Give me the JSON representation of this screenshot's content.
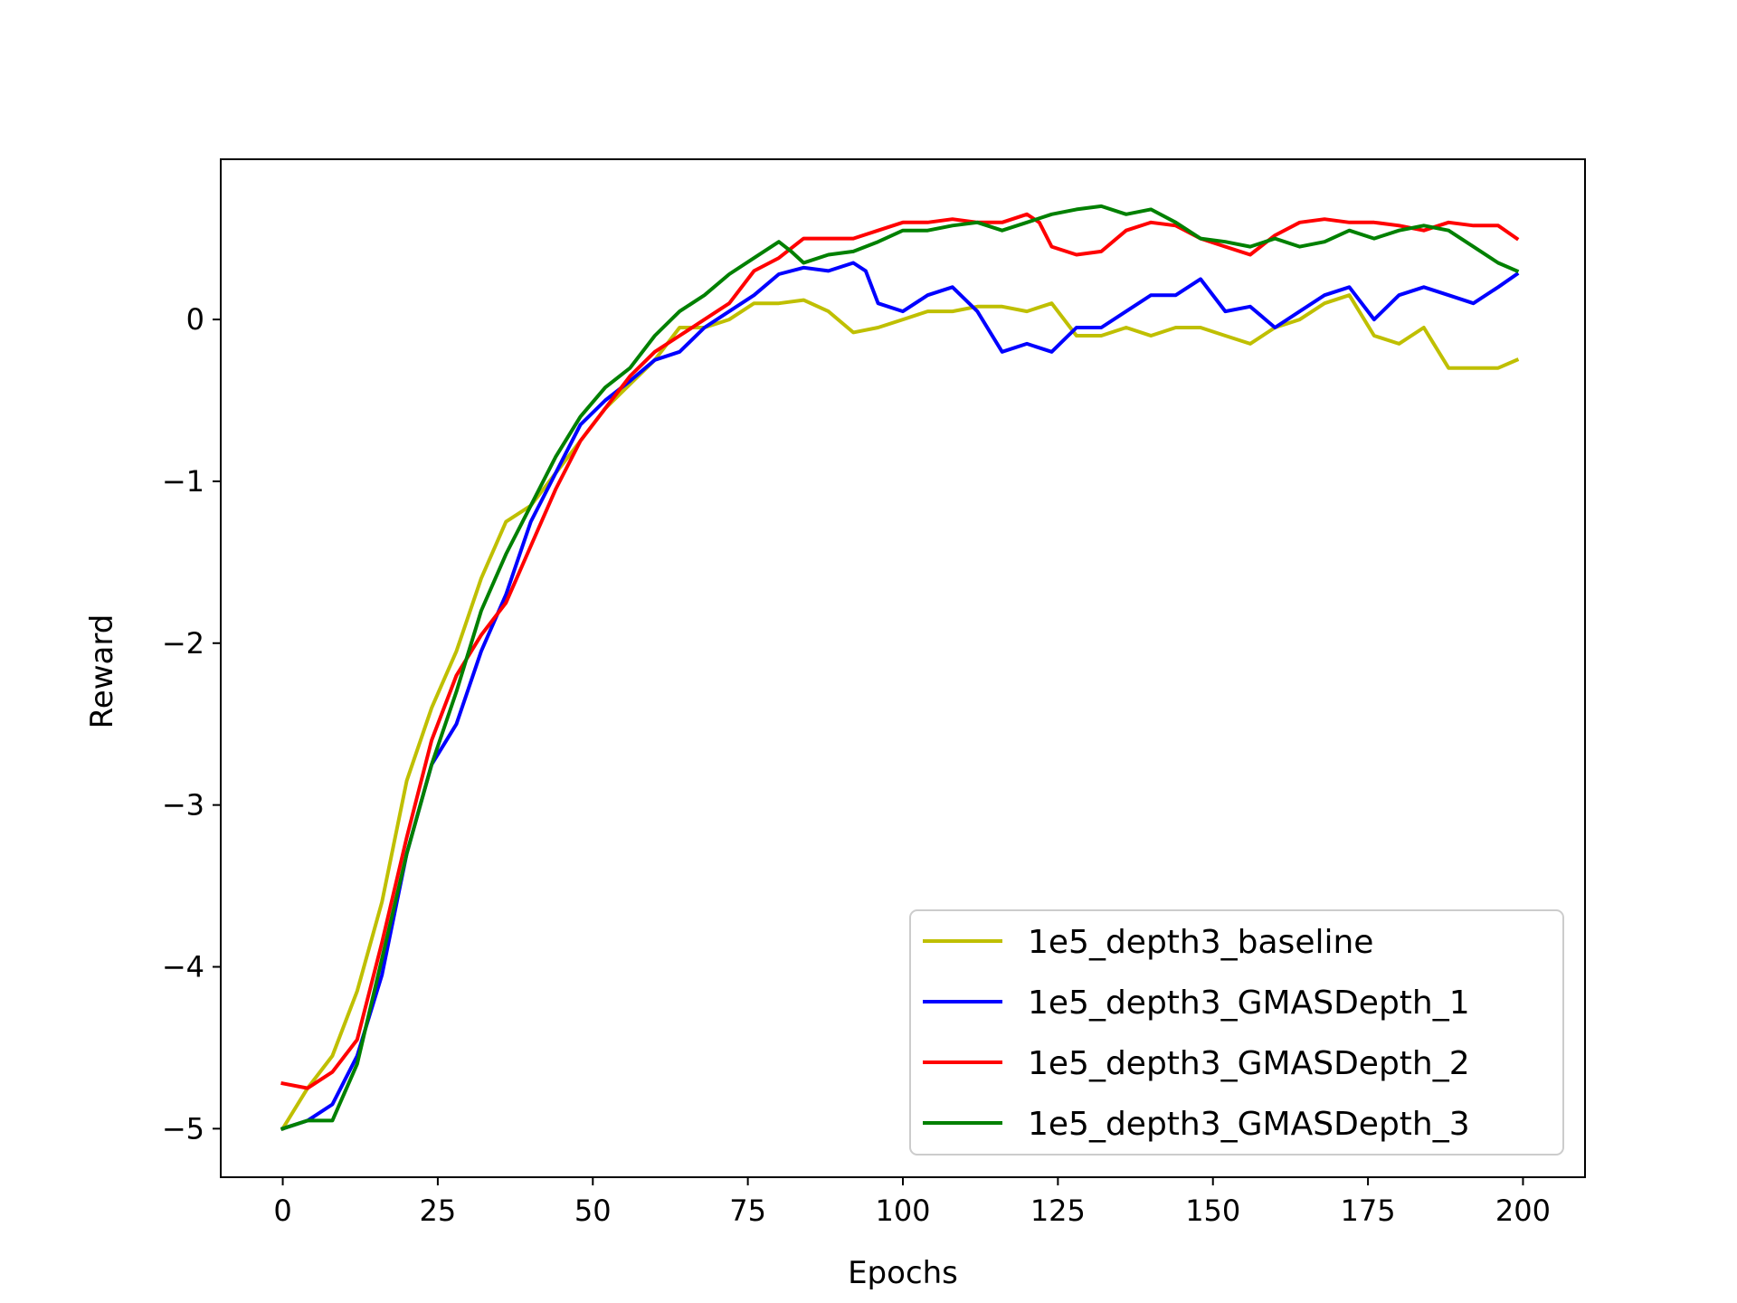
{
  "chart_data": {
    "type": "line",
    "xlabel": "Epochs",
    "ylabel": "Reward",
    "xlim": [
      -10,
      210
    ],
    "ylim": [
      -5.3,
      0.99
    ],
    "xticks": [
      0,
      25,
      50,
      75,
      100,
      125,
      150,
      175,
      200
    ],
    "xtick_labels": [
      "0",
      "25",
      "50",
      "75",
      "100",
      "125",
      "150",
      "175",
      "200"
    ],
    "yticks": [
      -5,
      -4,
      -3,
      -2,
      -1,
      0
    ],
    "ytick_labels": [
      "−5",
      "−4",
      "−3",
      "−2",
      "−1",
      "0"
    ],
    "grid": false,
    "legend_position": "lower-right",
    "series": [
      {
        "name": "1e5_depth3_baseline",
        "color": "#bfbf00",
        "x": [
          0,
          4,
          8,
          12,
          16,
          20,
          24,
          28,
          32,
          36,
          38,
          40,
          44,
          48,
          52,
          56,
          60,
          64,
          68,
          72,
          76,
          80,
          84,
          88,
          92,
          96,
          100,
          104,
          108,
          112,
          116,
          120,
          124,
          128,
          132,
          136,
          140,
          144,
          148,
          152,
          156,
          160,
          164,
          168,
          172,
          176,
          180,
          184,
          188,
          192,
          196,
          199
        ],
        "values": [
          -5.0,
          -4.75,
          -4.55,
          -4.15,
          -3.6,
          -2.85,
          -2.4,
          -2.05,
          -1.6,
          -1.25,
          -1.2,
          -1.15,
          -0.95,
          -0.75,
          -0.55,
          -0.4,
          -0.25,
          -0.05,
          -0.05,
          0.0,
          0.1,
          0.1,
          0.12,
          0.05,
          -0.08,
          -0.05,
          0.0,
          0.05,
          0.05,
          0.08,
          0.08,
          0.05,
          0.1,
          -0.1,
          -0.1,
          -0.05,
          -0.1,
          -0.05,
          -0.05,
          -0.1,
          -0.15,
          -0.05,
          0.0,
          0.1,
          0.15,
          -0.1,
          -0.15,
          -0.05,
          -0.3,
          -0.3,
          -0.3,
          -0.25
        ]
      },
      {
        "name": "1e5_depth3_GMASDepth_1",
        "color": "#0000ff",
        "x": [
          0,
          4,
          8,
          12,
          16,
          20,
          24,
          28,
          32,
          36,
          40,
          44,
          48,
          52,
          56,
          60,
          64,
          68,
          72,
          76,
          80,
          84,
          88,
          92,
          94,
          96,
          100,
          104,
          108,
          112,
          116,
          120,
          124,
          128,
          132,
          136,
          140,
          144,
          148,
          152,
          156,
          160,
          164,
          168,
          172,
          176,
          180,
          184,
          188,
          192,
          196,
          199
        ],
        "values": [
          -5.0,
          -4.95,
          -4.85,
          -4.55,
          -4.05,
          -3.3,
          -2.75,
          -2.5,
          -2.05,
          -1.7,
          -1.25,
          -0.95,
          -0.65,
          -0.5,
          -0.38,
          -0.25,
          -0.2,
          -0.05,
          0.05,
          0.15,
          0.28,
          0.32,
          0.3,
          0.35,
          0.3,
          0.1,
          0.05,
          0.15,
          0.2,
          0.05,
          -0.2,
          -0.15,
          -0.2,
          -0.05,
          -0.05,
          0.05,
          0.15,
          0.15,
          0.25,
          0.05,
          0.08,
          -0.05,
          0.05,
          0.15,
          0.2,
          0.0,
          0.15,
          0.2,
          0.15,
          0.1,
          0.2,
          0.28
        ]
      },
      {
        "name": "1e5_depth3_GMASDepth_2",
        "color": "#ff0000",
        "x": [
          0,
          4,
          8,
          12,
          16,
          20,
          24,
          28,
          32,
          36,
          40,
          44,
          48,
          52,
          56,
          60,
          64,
          68,
          72,
          76,
          80,
          84,
          88,
          92,
          96,
          100,
          104,
          108,
          112,
          116,
          120,
          122,
          124,
          128,
          132,
          136,
          140,
          144,
          148,
          152,
          156,
          160,
          164,
          168,
          172,
          176,
          180,
          184,
          188,
          192,
          196,
          199
        ],
        "values": [
          -4.72,
          -4.75,
          -4.65,
          -4.45,
          -3.85,
          -3.2,
          -2.6,
          -2.2,
          -1.95,
          -1.75,
          -1.4,
          -1.05,
          -0.75,
          -0.55,
          -0.35,
          -0.2,
          -0.1,
          0.0,
          0.1,
          0.3,
          0.38,
          0.5,
          0.5,
          0.5,
          0.55,
          0.6,
          0.6,
          0.62,
          0.6,
          0.6,
          0.65,
          0.6,
          0.45,
          0.4,
          0.42,
          0.55,
          0.6,
          0.58,
          0.5,
          0.45,
          0.4,
          0.52,
          0.6,
          0.62,
          0.6,
          0.6,
          0.58,
          0.55,
          0.6,
          0.58,
          0.58,
          0.5
        ]
      },
      {
        "name": "1e5_depth3_GMASDepth_3",
        "color": "#008000",
        "x": [
          0,
          4,
          8,
          12,
          16,
          20,
          24,
          28,
          32,
          36,
          40,
          44,
          48,
          52,
          56,
          60,
          64,
          68,
          72,
          76,
          80,
          82,
          84,
          88,
          92,
          96,
          100,
          104,
          108,
          112,
          116,
          120,
          124,
          128,
          132,
          136,
          140,
          144,
          148,
          152,
          156,
          160,
          164,
          168,
          172,
          176,
          180,
          184,
          188,
          192,
          196,
          199
        ],
        "values": [
          -5.0,
          -4.95,
          -4.95,
          -4.6,
          -3.95,
          -3.3,
          -2.75,
          -2.3,
          -1.8,
          -1.45,
          -1.15,
          -0.85,
          -0.6,
          -0.42,
          -0.3,
          -0.1,
          0.05,
          0.15,
          0.28,
          0.38,
          0.48,
          0.42,
          0.35,
          0.4,
          0.42,
          0.48,
          0.55,
          0.55,
          0.58,
          0.6,
          0.55,
          0.6,
          0.65,
          0.68,
          0.7,
          0.65,
          0.68,
          0.6,
          0.5,
          0.48,
          0.45,
          0.5,
          0.45,
          0.48,
          0.55,
          0.5,
          0.55,
          0.58,
          0.55,
          0.45,
          0.35,
          0.3
        ]
      }
    ]
  }
}
